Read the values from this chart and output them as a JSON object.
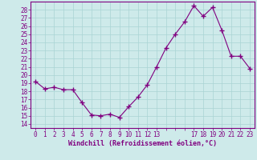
{
  "hours": [
    0,
    1,
    2,
    3,
    4,
    5,
    6,
    7,
    8,
    9,
    10,
    11,
    12,
    13,
    14,
    15,
    16,
    17,
    18,
    19,
    20,
    21,
    22,
    23
  ],
  "values": [
    19.2,
    18.3,
    18.5,
    18.2,
    18.2,
    16.6,
    15.1,
    15.0,
    15.2,
    14.8,
    16.1,
    17.3,
    18.8,
    21.0,
    23.3,
    25.0,
    26.5,
    28.5,
    27.2,
    28.3,
    25.5,
    22.3,
    22.3,
    20.8
  ],
  "line_color": "#800080",
  "marker": "+",
  "marker_size": 4,
  "bg_color": "#ceeaea",
  "grid_color": "#aad4d4",
  "ylabel_ticks": [
    14,
    15,
    16,
    17,
    18,
    19,
    20,
    21,
    22,
    23,
    24,
    25,
    26,
    27,
    28
  ],
  "xlabel": "Windchill (Refroidissement éolien,°C)",
  "xlim": [
    -0.5,
    23.5
  ],
  "ylim": [
    13.5,
    29.0
  ],
  "xticks": [
    0,
    1,
    2,
    3,
    4,
    5,
    6,
    7,
    8,
    9,
    10,
    11,
    12,
    13,
    17,
    18,
    19,
    20,
    21,
    22,
    23
  ],
  "xtick_labels": [
    "0",
    "1",
    "2",
    "3",
    "4",
    "5",
    "6",
    "7",
    "8",
    "9",
    "10",
    "11",
    "12",
    "13",
    "17",
    "18",
    "19",
    "20",
    "21",
    "22",
    "23"
  ],
  "tick_fontsize": 5.5,
  "xlabel_fontsize": 6.0
}
